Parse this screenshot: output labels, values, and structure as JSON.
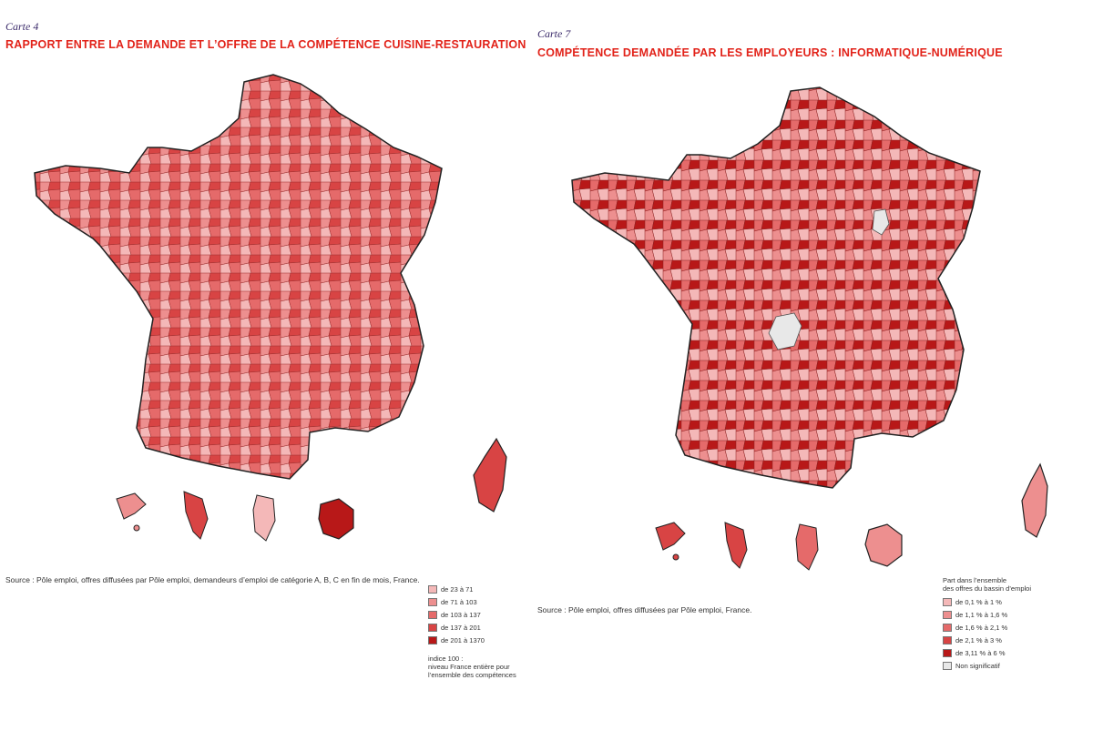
{
  "left_map": {
    "label": "Carte 4",
    "title": "RAPPORT ENTRE LA DEMANDE ET L’OFFRE DE LA COMPÉTENCE CUISINE-RESTAURATION",
    "source": "Source : Pôle emploi, offres diffusées par Pôle emploi, demandeurs d’emploi de catégorie A, B, C en fin de mois, France.",
    "legend": [
      {
        "label": "de 23 à 71",
        "color": "#f4b8b8"
      },
      {
        "label": "de 71 à 103",
        "color": "#ed8f8f"
      },
      {
        "label": "de 103 à 137",
        "color": "#e56a6a"
      },
      {
        "label": "de 137 à 201",
        "color": "#d84444"
      },
      {
        "label": "de 201 à 1370",
        "color": "#b81818"
      }
    ],
    "note": [
      "indice 100 :",
      "niveau France entière pour",
      "l’ensemble des compétences"
    ]
  },
  "right_map": {
    "label": "Carte 7",
    "title": "COMPÉTENCE DEMANDÉE PAR LES EMPLOYEURS : INFORMATIQUE-NUMÉRIQUE",
    "source": "Source : Pôle emploi, offres diffusées par Pôle emploi, France.",
    "legend_head": [
      "Part dans l’ensemble",
      "des offres du bassin d’emploi"
    ],
    "legend": [
      {
        "label": "de 0,1 % à 1 %",
        "color": "#f4b8b8"
      },
      {
        "label": "de 1,1 % à 1,6 %",
        "color": "#ed8f8f"
      },
      {
        "label": "de 1,6 % à 2,1 %",
        "color": "#e56a6a"
      },
      {
        "label": "de 2,1 % à 3 %",
        "color": "#d84444"
      },
      {
        "label": "de 3,11 % à 6 %",
        "color": "#b81818"
      },
      {
        "label": "Non significatif",
        "color": "#e8e8e8"
      }
    ]
  }
}
